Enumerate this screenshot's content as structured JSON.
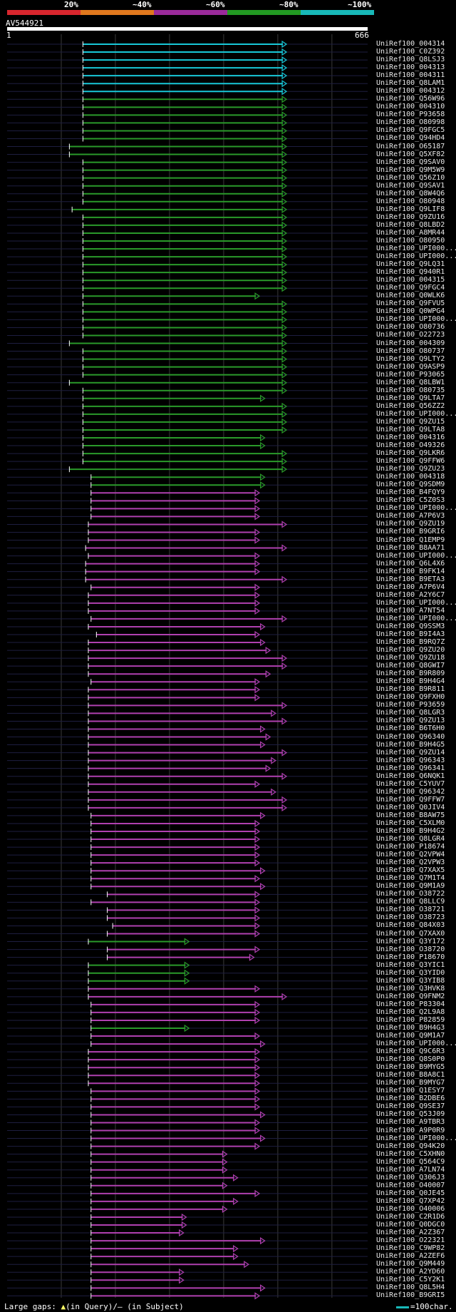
{
  "query": {
    "name": "AV544921",
    "start": "1",
    "end": "666",
    "length": 666
  },
  "identity_scale": {
    "labels": [
      "20%",
      "~40%",
      "~60%",
      "~80%",
      "~100%"
    ],
    "colors": [
      "#d8262e",
      "#e0781e",
      "#9a2a9a",
      "#229922",
      "#18b8b8"
    ]
  },
  "legend": {
    "prefix": "Large gaps: ",
    "query_gap_symbol": "▲",
    "query_gap_text": "(in Query)/",
    "subject_gap_symbol": "—",
    "subject_gap_text": " (in Subject)",
    "scale_text": "=100char."
  },
  "hits": [
    {
      "name": "UniRef100_004314",
      "start": 140,
      "end": 516,
      "color": "cyan"
    },
    {
      "name": "UniRef100_C0Z392",
      "start": 140,
      "end": 516,
      "color": "cyan"
    },
    {
      "name": "UniRef100_Q8LSJ3",
      "start": 140,
      "end": 516,
      "color": "cyan"
    },
    {
      "name": "UniRef100_004313",
      "start": 140,
      "end": 516,
      "color": "cyan"
    },
    {
      "name": "UniRef100_004311",
      "start": 140,
      "end": 516,
      "color": "cyan"
    },
    {
      "name": "UniRef100_Q8LAM1",
      "start": 140,
      "end": 516,
      "color": "cyan"
    },
    {
      "name": "UniRef100_004312",
      "start": 140,
      "end": 516,
      "color": "cyan"
    },
    {
      "name": "UniRef100_Q56W96",
      "start": 140,
      "end": 516,
      "color": "green"
    },
    {
      "name": "UniRef100_004310",
      "start": 140,
      "end": 516,
      "color": "green"
    },
    {
      "name": "UniRef100_P93658",
      "start": 140,
      "end": 516,
      "color": "green"
    },
    {
      "name": "UniRef100_O80998",
      "start": 140,
      "end": 516,
      "color": "green"
    },
    {
      "name": "UniRef100_Q9FGC5",
      "start": 140,
      "end": 516,
      "color": "green"
    },
    {
      "name": "UniRef100_Q94HD4",
      "start": 140,
      "end": 516,
      "color": "green"
    },
    {
      "name": "UniRef100_O65187",
      "start": 115,
      "end": 516,
      "color": "green"
    },
    {
      "name": "UniRef100_Q5XF82",
      "start": 115,
      "end": 516,
      "color": "green"
    },
    {
      "name": "UniRef100_Q9SAV0",
      "start": 140,
      "end": 516,
      "color": "green"
    },
    {
      "name": "UniRef100_Q9M5W9",
      "start": 140,
      "end": 516,
      "color": "green"
    },
    {
      "name": "UniRef100_Q56Z10",
      "start": 140,
      "end": 516,
      "color": "green"
    },
    {
      "name": "UniRef100_Q9SAV1",
      "start": 140,
      "end": 516,
      "color": "green"
    },
    {
      "name": "UniRef100_Q8W4Q6",
      "start": 140,
      "end": 516,
      "color": "green"
    },
    {
      "name": "UniRef100_O80948",
      "start": 140,
      "end": 516,
      "color": "green"
    },
    {
      "name": "UniRef100_Q9LIF8",
      "start": 120,
      "end": 516,
      "color": "green"
    },
    {
      "name": "UniRef100_Q9ZU16",
      "start": 140,
      "end": 516,
      "color": "green"
    },
    {
      "name": "UniRef100_Q8LBD2",
      "start": 140,
      "end": 516,
      "color": "green"
    },
    {
      "name": "UniRef100_A8MR44",
      "start": 140,
      "end": 516,
      "color": "green"
    },
    {
      "name": "UniRef100_O80950",
      "start": 140,
      "end": 516,
      "color": "green"
    },
    {
      "name": "UniRef100_UPI000...",
      "start": 140,
      "end": 516,
      "color": "green"
    },
    {
      "name": "UniRef100_UPI000...",
      "start": 140,
      "end": 516,
      "color": "green"
    },
    {
      "name": "UniRef100_Q9LQ31",
      "start": 140,
      "end": 516,
      "color": "green"
    },
    {
      "name": "UniRef100_Q940R1",
      "start": 140,
      "end": 516,
      "color": "green"
    },
    {
      "name": "UniRef100_004315",
      "start": 140,
      "end": 516,
      "color": "green"
    },
    {
      "name": "UniRef100_Q9FGC4",
      "start": 140,
      "end": 516,
      "color": "green"
    },
    {
      "name": "UniRef100_Q0WLK6",
      "start": 140,
      "end": 466,
      "color": "green"
    },
    {
      "name": "UniRef100_Q9FVU5",
      "start": 140,
      "end": 516,
      "color": "green"
    },
    {
      "name": "UniRef100_Q0WPG4",
      "start": 140,
      "end": 516,
      "color": "green"
    },
    {
      "name": "UniRef100_UPI000...",
      "start": 140,
      "end": 516,
      "color": "green"
    },
    {
      "name": "UniRef100_O80736",
      "start": 140,
      "end": 516,
      "color": "green"
    },
    {
      "name": "UniRef100_O22723",
      "start": 140,
      "end": 516,
      "color": "green"
    },
    {
      "name": "UniRef100_004309",
      "start": 115,
      "end": 516,
      "color": "green"
    },
    {
      "name": "UniRef100_O80737",
      "start": 140,
      "end": 516,
      "color": "green"
    },
    {
      "name": "UniRef100_Q9LTY2",
      "start": 140,
      "end": 516,
      "color": "green"
    },
    {
      "name": "UniRef100_Q9ASP9",
      "start": 140,
      "end": 516,
      "color": "green"
    },
    {
      "name": "UniRef100_P93065",
      "start": 140,
      "end": 516,
      "color": "green"
    },
    {
      "name": "UniRef100_Q8LBW1",
      "start": 115,
      "end": 516,
      "color": "green"
    },
    {
      "name": "UniRef100_O80735",
      "start": 140,
      "end": 516,
      "color": "green"
    },
    {
      "name": "UniRef100_Q9LTA7",
      "start": 140,
      "end": 476,
      "color": "green"
    },
    {
      "name": "UniRef100_Q56ZZ2",
      "start": 140,
      "end": 516,
      "color": "green"
    },
    {
      "name": "UniRef100_UPI000...",
      "start": 140,
      "end": 516,
      "color": "green"
    },
    {
      "name": "UniRef100_Q9ZU15",
      "start": 140,
      "end": 516,
      "color": "green"
    },
    {
      "name": "UniRef100_Q9LTA8",
      "start": 140,
      "end": 516,
      "color": "green"
    },
    {
      "name": "UniRef100_004316",
      "start": 140,
      "end": 476,
      "color": "green"
    },
    {
      "name": "UniRef100_O49326",
      "start": 140,
      "end": 476,
      "color": "green"
    },
    {
      "name": "UniRef100_Q9LKR6",
      "start": 140,
      "end": 516,
      "color": "green"
    },
    {
      "name": "UniRef100_Q9FFW6",
      "start": 140,
      "end": 516,
      "color": "green"
    },
    {
      "name": "UniRef100_Q9ZU23",
      "start": 115,
      "end": 516,
      "color": "green"
    },
    {
      "name": "UniRef100_004318",
      "start": 155,
      "end": 476,
      "color": "green"
    },
    {
      "name": "UniRef100_Q9SDM9",
      "start": 155,
      "end": 476,
      "color": "green"
    },
    {
      "name": "UniRef100_B4FQY9",
      "start": 155,
      "end": 466,
      "color": "magenta"
    },
    {
      "name": "UniRef100_C5Z0S3",
      "start": 155,
      "end": 466,
      "color": "magenta"
    },
    {
      "name": "UniRef100_UPI000...",
      "start": 155,
      "end": 466,
      "color": "magenta"
    },
    {
      "name": "UniRef100_A7P6V3",
      "start": 155,
      "end": 466,
      "color": "magenta"
    },
    {
      "name": "UniRef100_Q9ZU19",
      "start": 150,
      "end": 516,
      "color": "magenta"
    },
    {
      "name": "UniRef100_B9GRI6",
      "start": 150,
      "end": 466,
      "color": "magenta"
    },
    {
      "name": "UniRef100_Q1EMP9",
      "start": 150,
      "end": 466,
      "color": "magenta"
    },
    {
      "name": "UniRef100_B8AA71",
      "start": 145,
      "end": 516,
      "color": "magenta"
    },
    {
      "name": "UniRef100_UPI000...",
      "start": 150,
      "end": 466,
      "color": "magenta"
    },
    {
      "name": "UniRef100_Q6L4X6",
      "start": 145,
      "end": 466,
      "color": "magenta"
    },
    {
      "name": "UniRef100_B9FK14",
      "start": 145,
      "end": 466,
      "color": "magenta"
    },
    {
      "name": "UniRef100_B9ETA3",
      "start": 145,
      "end": 516,
      "color": "magenta"
    },
    {
      "name": "UniRef100_A7P6V4",
      "start": 155,
      "end": 466,
      "color": "magenta"
    },
    {
      "name": "UniRef100_A2Y6C7",
      "start": 150,
      "end": 466,
      "color": "magenta"
    },
    {
      "name": "UniRef100_UPI000...",
      "start": 150,
      "end": 466,
      "color": "magenta"
    },
    {
      "name": "UniRef100_A7NT54",
      "start": 150,
      "end": 466,
      "color": "magenta"
    },
    {
      "name": "UniRef100_UPI000...",
      "start": 155,
      "end": 516,
      "color": "magenta"
    },
    {
      "name": "UniRef100_Q9SSM3",
      "start": 150,
      "end": 476,
      "color": "magenta"
    },
    {
      "name": "UniRef100_B9I4A3",
      "start": 165,
      "end": 466,
      "color": "magenta"
    },
    {
      "name": "UniRef100_B9RQ7Z",
      "start": 150,
      "end": 476,
      "color": "magenta"
    },
    {
      "name": "UniRef100_Q9ZU20",
      "start": 150,
      "end": 486,
      "color": "magenta"
    },
    {
      "name": "UniRef100_Q9ZU18",
      "start": 150,
      "end": 516,
      "color": "magenta"
    },
    {
      "name": "UniRef100_Q8GWI7",
      "start": 150,
      "end": 516,
      "color": "magenta"
    },
    {
      "name": "UniRef100_B9R809",
      "start": 150,
      "end": 486,
      "color": "magenta"
    },
    {
      "name": "UniRef100_B9H4G4",
      "start": 155,
      "end": 466,
      "color": "magenta"
    },
    {
      "name": "UniRef100_B9R811",
      "start": 150,
      "end": 466,
      "color": "magenta"
    },
    {
      "name": "UniRef100_Q9FXH0",
      "start": 150,
      "end": 466,
      "color": "magenta"
    },
    {
      "name": "UniRef100_P93659",
      "start": 150,
      "end": 516,
      "color": "magenta"
    },
    {
      "name": "UniRef100_Q8LGR3",
      "start": 150,
      "end": 496,
      "color": "magenta"
    },
    {
      "name": "UniRef100_Q9ZU13",
      "start": 150,
      "end": 516,
      "color": "magenta"
    },
    {
      "name": "UniRef100_B6T6H0",
      "start": 150,
      "end": 476,
      "color": "magenta"
    },
    {
      "name": "UniRef100_Q96340",
      "start": 150,
      "end": 486,
      "color": "magenta"
    },
    {
      "name": "UniRef100_B9H4G5",
      "start": 150,
      "end": 476,
      "color": "magenta"
    },
    {
      "name": "UniRef100_Q9ZU14",
      "start": 150,
      "end": 516,
      "color": "magenta"
    },
    {
      "name": "UniRef100_Q96343",
      "start": 150,
      "end": 496,
      "color": "magenta"
    },
    {
      "name": "UniRef100_Q96341",
      "start": 150,
      "end": 486,
      "color": "magenta"
    },
    {
      "name": "UniRef100_Q6NQK1",
      "start": 150,
      "end": 516,
      "color": "magenta"
    },
    {
      "name": "UniRef100_C5YUV7",
      "start": 150,
      "end": 466,
      "color": "magenta"
    },
    {
      "name": "UniRef100_Q96342",
      "start": 150,
      "end": 496,
      "color": "magenta"
    },
    {
      "name": "UniRef100_Q9FFW7",
      "start": 150,
      "end": 516,
      "color": "magenta"
    },
    {
      "name": "UniRef100_Q0JIV4",
      "start": 150,
      "end": 516,
      "color": "magenta"
    },
    {
      "name": "UniRef100_B8AW75",
      "start": 155,
      "end": 476,
      "color": "magenta"
    },
    {
      "name": "UniRef100_C5XLM0",
      "start": 155,
      "end": 466,
      "color": "magenta"
    },
    {
      "name": "UniRef100_B9H4G2",
      "start": 155,
      "end": 466,
      "color": "magenta"
    },
    {
      "name": "UniRef100_Q8LGR4",
      "start": 155,
      "end": 466,
      "color": "magenta"
    },
    {
      "name": "UniRef100_P18674",
      "start": 155,
      "end": 466,
      "color": "magenta"
    },
    {
      "name": "UniRef100_Q2VPW4",
      "start": 155,
      "end": 466,
      "color": "magenta"
    },
    {
      "name": "UniRef100_Q2VPW3",
      "start": 155,
      "end": 466,
      "color": "magenta"
    },
    {
      "name": "UniRef100_Q7XAX5",
      "start": 155,
      "end": 476,
      "color": "magenta"
    },
    {
      "name": "UniRef100_Q7M1T4",
      "start": 155,
      "end": 466,
      "color": "magenta"
    },
    {
      "name": "UniRef100_Q9M1A9",
      "start": 155,
      "end": 476,
      "color": "magenta"
    },
    {
      "name": "UniRef100_O38722",
      "start": 185,
      "end": 466,
      "color": "magenta"
    },
    {
      "name": "UniRef100_Q8LLC9",
      "start": 155,
      "end": 466,
      "color": "magenta"
    },
    {
      "name": "UniRef100_O38721",
      "start": 185,
      "end": 466,
      "color": "magenta"
    },
    {
      "name": "UniRef100_O38723",
      "start": 185,
      "end": 466,
      "color": "magenta"
    },
    {
      "name": "UniRef100_Q84X03",
      "start": 195,
      "end": 466,
      "color": "magenta"
    },
    {
      "name": "UniRef100_Q7XAX0",
      "start": 185,
      "end": 466,
      "color": "magenta"
    },
    {
      "name": "UniRef100_Q3Y172",
      "start": 150,
      "end": 336,
      "color": "green"
    },
    {
      "name": "UniRef100_O38720",
      "start": 185,
      "end": 466,
      "color": "magenta"
    },
    {
      "name": "UniRef100_P18670",
      "start": 185,
      "end": 456,
      "color": "magenta"
    },
    {
      "name": "UniRef100_Q3YIC1",
      "start": 150,
      "end": 336,
      "color": "green"
    },
    {
      "name": "UniRef100_Q3YID0",
      "start": 150,
      "end": 336,
      "color": "green"
    },
    {
      "name": "UniRef100_Q3YIB8",
      "start": 150,
      "end": 336,
      "color": "green"
    },
    {
      "name": "UniRef100_Q3HVK8",
      "start": 150,
      "end": 466,
      "color": "magenta"
    },
    {
      "name": "UniRef100_Q9FNM2",
      "start": 150,
      "end": 516,
      "color": "magenta"
    },
    {
      "name": "UniRef100_P83304",
      "start": 155,
      "end": 466,
      "color": "magenta"
    },
    {
      "name": "UniRef100_Q2L9A8",
      "start": 155,
      "end": 466,
      "color": "magenta"
    },
    {
      "name": "UniRef100_P82859",
      "start": 155,
      "end": 466,
      "color": "magenta"
    },
    {
      "name": "UniRef100_B9H4G3",
      "start": 155,
      "end": 336,
      "color": "green"
    },
    {
      "name": "UniRef100_Q9M1A7",
      "start": 155,
      "end": 466,
      "color": "magenta"
    },
    {
      "name": "UniRef100_UPI000...",
      "start": 155,
      "end": 476,
      "color": "magenta"
    },
    {
      "name": "UniRef100_Q9C6R3",
      "start": 150,
      "end": 466,
      "color": "magenta"
    },
    {
      "name": "UniRef100_Q8S0P0",
      "start": 150,
      "end": 466,
      "color": "magenta"
    },
    {
      "name": "UniRef100_B9MYG5",
      "start": 150,
      "end": 466,
      "color": "magenta"
    },
    {
      "name": "UniRef100_B8A8C1",
      "start": 150,
      "end": 466,
      "color": "magenta"
    },
    {
      "name": "UniRef100_B9MYG7",
      "start": 150,
      "end": 466,
      "color": "magenta"
    },
    {
      "name": "UniRef100_Q1ESY7",
      "start": 155,
      "end": 466,
      "color": "magenta"
    },
    {
      "name": "UniRef100_B2DBE6",
      "start": 155,
      "end": 466,
      "color": "magenta"
    },
    {
      "name": "UniRef100_Q9SE37",
      "start": 155,
      "end": 466,
      "color": "magenta"
    },
    {
      "name": "UniRef100_Q53J09",
      "start": 155,
      "end": 476,
      "color": "magenta"
    },
    {
      "name": "UniRef100_A9TBR3",
      "start": 155,
      "end": 466,
      "color": "magenta"
    },
    {
      "name": "UniRef100_A9P0R9",
      "start": 155,
      "end": 466,
      "color": "magenta"
    },
    {
      "name": "UniRef100_UPI000...",
      "start": 155,
      "end": 476,
      "color": "magenta"
    },
    {
      "name": "UniRef100_Q94K20",
      "start": 155,
      "end": 466,
      "color": "magenta"
    },
    {
      "name": "UniRef100_C5XHN0",
      "start": 155,
      "end": 406,
      "color": "magenta"
    },
    {
      "name": "UniRef100_Q564C9",
      "start": 155,
      "end": 406,
      "color": "magenta"
    },
    {
      "name": "UniRef100_A7LN74",
      "start": 155,
      "end": 406,
      "color": "magenta"
    },
    {
      "name": "UniRef100_Q306J3",
      "start": 155,
      "end": 426,
      "color": "magenta"
    },
    {
      "name": "UniRef100_O40007",
      "start": 155,
      "end": 406,
      "color": "magenta"
    },
    {
      "name": "UniRef100_Q0JE45",
      "start": 155,
      "end": 466,
      "color": "magenta"
    },
    {
      "name": "UniRef100_Q7XP42",
      "start": 155,
      "end": 426,
      "color": "magenta"
    },
    {
      "name": "UniRef100_O40006",
      "start": 155,
      "end": 406,
      "color": "magenta"
    },
    {
      "name": "UniRef100_C2R1D6",
      "start": 155,
      "end": 331,
      "color": "magenta"
    },
    {
      "name": "UniRef100_Q0DGC0",
      "start": 155,
      "end": 331,
      "color": "magenta"
    },
    {
      "name": "UniRef100_A2Z367",
      "start": 155,
      "end": 326,
      "color": "magenta"
    },
    {
      "name": "UniRef100_O22321",
      "start": 155,
      "end": 476,
      "color": "magenta"
    },
    {
      "name": "UniRef100_C9WP82",
      "start": 155,
      "end": 426,
      "color": "magenta"
    },
    {
      "name": "UniRef100_A2ZEF6",
      "start": 155,
      "end": 426,
      "color": "magenta"
    },
    {
      "name": "UniRef100_Q9M449",
      "start": 155,
      "end": 446,
      "color": "magenta"
    },
    {
      "name": "UniRef100_A2YD60",
      "start": 155,
      "end": 326,
      "color": "magenta"
    },
    {
      "name": "UniRef100_C5Y2K1",
      "start": 155,
      "end": 326,
      "color": "magenta"
    },
    {
      "name": "UniRef100_Q8L5H4",
      "start": 155,
      "end": 476,
      "color": "magenta"
    },
    {
      "name": "UniRef100_B9GRI5",
      "start": 155,
      "end": 466,
      "color": "magenta"
    }
  ]
}
